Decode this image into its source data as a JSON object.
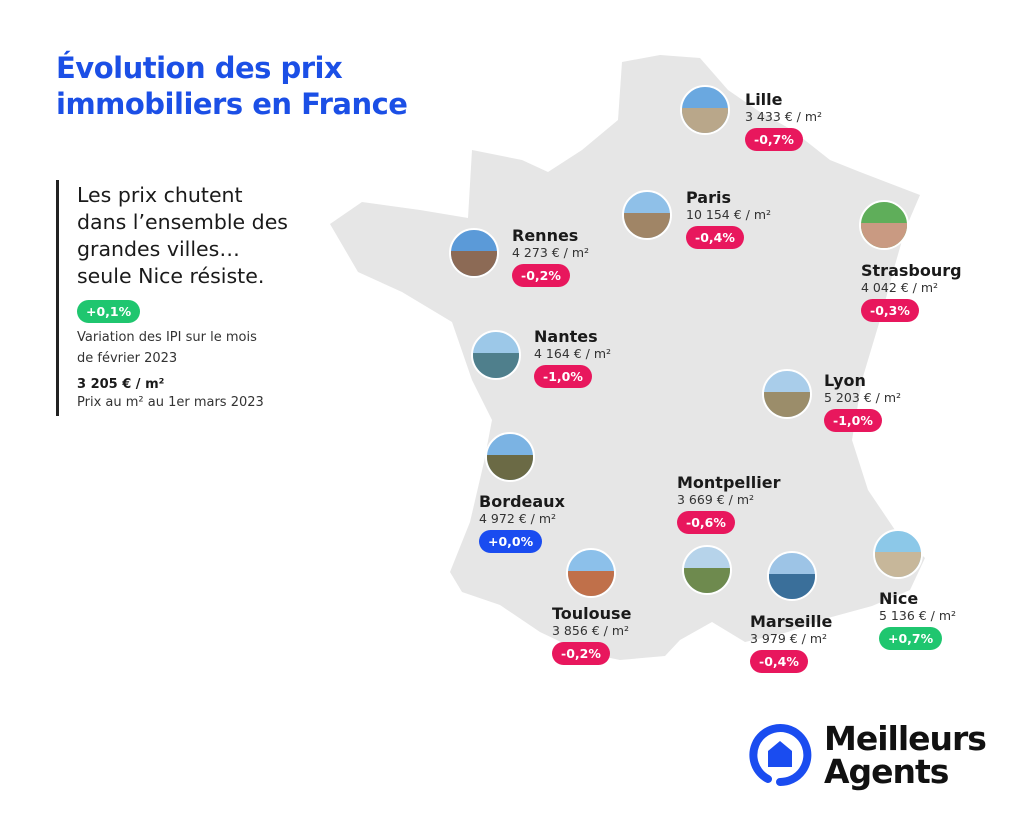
{
  "title": [
    "Évolution des prix",
    "immobiliers en France"
  ],
  "headline": [
    "Les prix chutent",
    "dans l’ensemble des",
    "grandes villes…",
    "seule Nice résiste."
  ],
  "national": {
    "variation": "+0,1%",
    "variation_label": [
      "Variation des IPI sur le mois",
      "de février 2023"
    ],
    "price": "3 205 € / m²",
    "price_label": "Prix au m² au 1er mars 2023"
  },
  "cities": [
    {
      "name": "Lille",
      "price": "3 433 € / m²",
      "variation": "-0,7%",
      "status": "down"
    },
    {
      "name": "Paris",
      "price": "10 154 € / m²",
      "variation": "-0,4%",
      "status": "down"
    },
    {
      "name": "Rennes",
      "price": "4 273 € / m²",
      "variation": "-0,2%",
      "status": "down"
    },
    {
      "name": "Strasbourg",
      "price": "4 042 € / m²",
      "variation": "-0,3%",
      "status": "down"
    },
    {
      "name": "Nantes",
      "price": "4 164 € / m²",
      "variation": "-1,0%",
      "status": "down"
    },
    {
      "name": "Lyon",
      "price": "5 203 € / m²",
      "variation": "-1,0%",
      "status": "down"
    },
    {
      "name": "Bordeaux",
      "price": "4 972 € / m²",
      "variation": "+0,0%",
      "status": "flat"
    },
    {
      "name": "Montpellier",
      "price": "3 669 € / m²",
      "variation": "-0,6%",
      "status": "down"
    },
    {
      "name": "Toulouse",
      "price": "3 856 € / m²",
      "variation": "-0,2%",
      "status": "down"
    },
    {
      "name": "Marseille",
      "price": "3 979 € / m²",
      "variation": "-0,4%",
      "status": "down"
    },
    {
      "name": "Nice",
      "price": "5 136 € / m²",
      "variation": "+0,7%",
      "status": "up"
    }
  ],
  "colors": {
    "title": "#1b4fe6",
    "down": "#e8175d",
    "up": "#1fc66f",
    "flat": "#1a4cf0",
    "map": "#e6e6e6"
  },
  "logo": {
    "line1": "Meilleurs",
    "line2": "Agents"
  }
}
